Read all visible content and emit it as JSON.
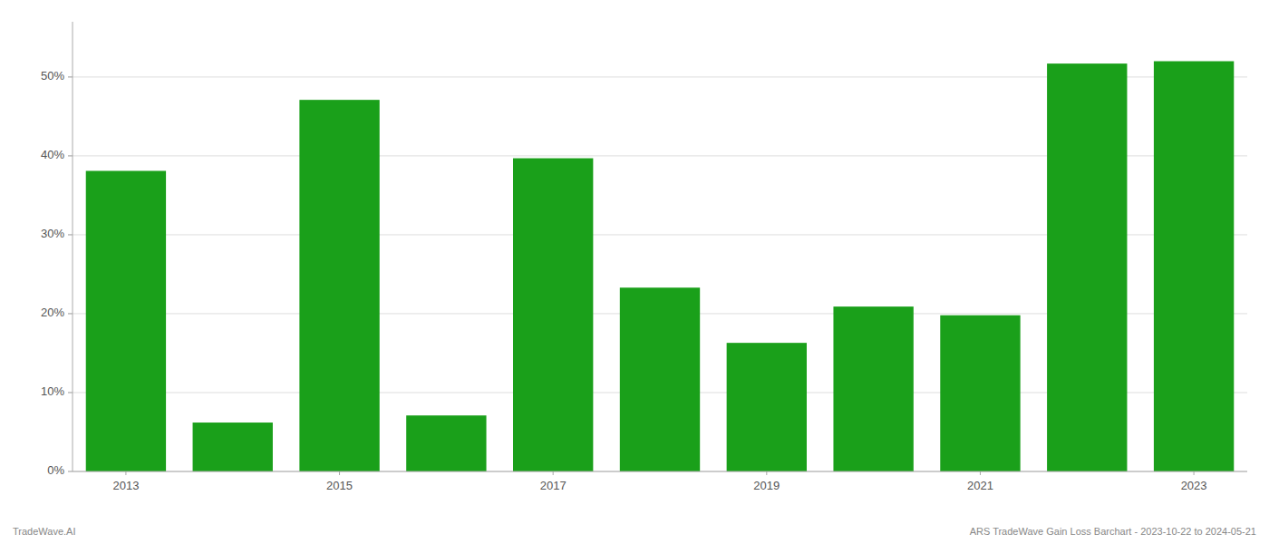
{
  "chart_data": {
    "type": "bar",
    "categories": [
      "2013",
      null,
      "2015",
      null,
      "2017",
      null,
      "2019",
      null,
      "2021",
      null,
      "2023"
    ],
    "values": [
      0.381,
      0.062,
      0.471,
      0.071,
      0.397,
      0.233,
      0.163,
      0.209,
      0.198,
      0.517,
      0.52
    ],
    "color": "#1aa01a",
    "ylim": [
      0,
      0.57
    ],
    "yticks": [
      {
        "value": 0.0,
        "label": "0%"
      },
      {
        "value": 0.1,
        "label": "10%"
      },
      {
        "value": 0.2,
        "label": "20%"
      },
      {
        "value": 0.3,
        "label": "30%"
      },
      {
        "value": 0.4,
        "label": "40%"
      },
      {
        "value": 0.5,
        "label": "50%"
      }
    ],
    "grid": true,
    "annotations": [
      "TradeWave.AI",
      "ARS TradeWave Gain Loss Barchart - 2023-10-22 to 2024-05-21"
    ]
  }
}
